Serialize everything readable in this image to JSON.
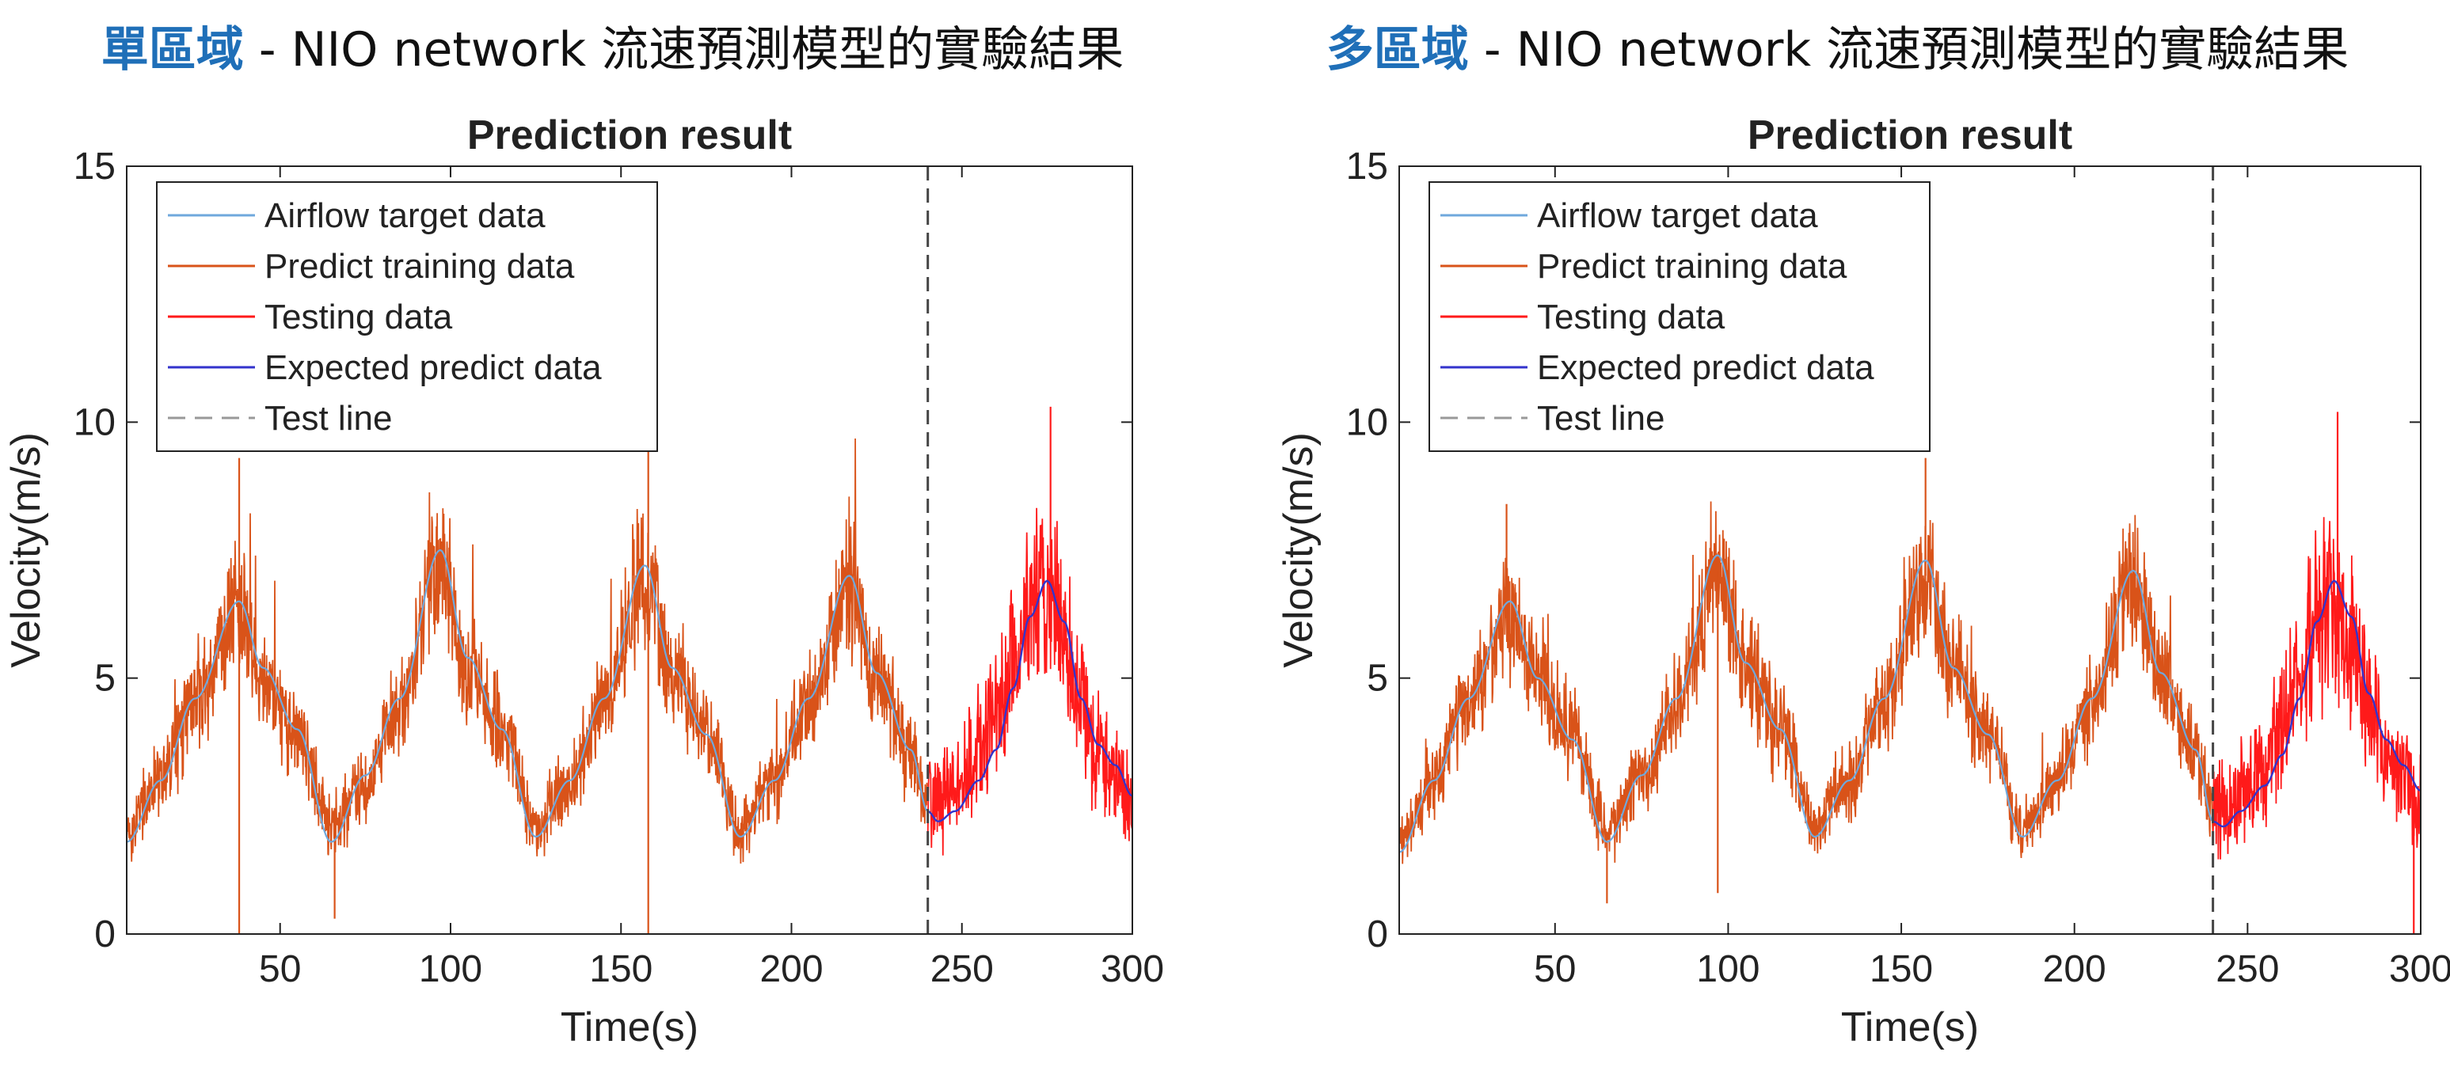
{
  "headings": [
    {
      "highlight": "單區域",
      "rest": " - NIO network 流速預測模型的實驗結果"
    },
    {
      "highlight": "多區域",
      "rest": " - NIO network 流速預測模型的實驗結果"
    }
  ],
  "colors": {
    "highlight": "#1f6fb8",
    "airflow_target": "#6fa8dc",
    "predict_training": "#d95319",
    "testing": "#ff1a1a",
    "expected_predict": "#3333cc",
    "test_line": "#999999"
  },
  "chart_data": [
    {
      "type": "line",
      "title": "Prediction result",
      "xlabel": "Time(s)",
      "ylabel": "Velocity(m/s)",
      "xlim": [
        5,
        300
      ],
      "ylim": [
        0,
        15
      ],
      "xticks": [
        50,
        100,
        150,
        200,
        250,
        300
      ],
      "yticks": [
        0,
        5,
        10,
        15
      ],
      "test_line_x": 240,
      "legend_position": "top-left",
      "legend": [
        "Airflow target data",
        "Predict training data",
        "Testing data",
        "Expected predict data",
        "Test line"
      ],
      "series": [
        {
          "name": "Airflow target data",
          "x": [
            5,
            15,
            25,
            38,
            45,
            55,
            65,
            75,
            85,
            97,
            105,
            115,
            125,
            135,
            145,
            157,
            165,
            175,
            185,
            195,
            205,
            217,
            225,
            235,
            240
          ],
          "values": [
            1.8,
            3.0,
            4.6,
            6.5,
            5.2,
            4.0,
            1.8,
            3.1,
            4.6,
            7.5,
            5.4,
            4.0,
            1.9,
            3.0,
            4.6,
            7.2,
            5.2,
            3.9,
            1.9,
            3.0,
            4.6,
            7.0,
            5.1,
            3.6,
            2.4
          ]
        },
        {
          "name": "Predict training data",
          "x": [
            5,
            15,
            25,
            38,
            45,
            55,
            65,
            75,
            85,
            97,
            105,
            115,
            125,
            135,
            145,
            157,
            165,
            175,
            185,
            195,
            205,
            217,
            225,
            235,
            240
          ],
          "values": [
            2.0,
            3.1,
            4.5,
            6.2,
            5.0,
            4.0,
            2.1,
            3.0,
            4.4,
            7.2,
            5.3,
            4.1,
            2.1,
            3.0,
            4.5,
            7.0,
            5.1,
            3.9,
            2.0,
            3.0,
            4.5,
            6.8,
            5.0,
            3.5,
            2.6
          ]
        },
        {
          "name": "Testing data",
          "x": [
            240,
            245,
            250,
            255,
            260,
            265,
            270,
            275,
            280,
            285,
            290,
            295,
            300
          ],
          "values": [
            2.8,
            2.7,
            3.0,
            3.6,
            4.2,
            5.3,
            6.4,
            6.6,
            5.8,
            4.5,
            3.6,
            3.1,
            2.6
          ]
        },
        {
          "name": "Expected predict data",
          "x": [
            240,
            243,
            248,
            255,
            260,
            265,
            270,
            275,
            280,
            285,
            290,
            295,
            300
          ],
          "values": [
            2.4,
            2.2,
            2.4,
            3.0,
            3.6,
            4.8,
            6.2,
            6.9,
            6.1,
            4.6,
            3.7,
            3.3,
            2.7
          ]
        }
      ],
      "spikes": [
        {
          "x": 38,
          "y": 0
        },
        {
          "x": 38,
          "y": 9.3
        },
        {
          "x": 158,
          "y": 0
        },
        {
          "x": 158,
          "y": 9.9
        },
        {
          "x": 276,
          "y": 10.3
        },
        {
          "x": 66,
          "y": 0.3
        }
      ]
    },
    {
      "type": "line",
      "title": "Prediction result",
      "xlabel": "Time(s)",
      "ylabel": "Velocity(m/s)",
      "xlim": [
        5,
        300
      ],
      "ylim": [
        0,
        15
      ],
      "xticks": [
        50,
        100,
        150,
        200,
        250,
        300
      ],
      "yticks": [
        0,
        5,
        10,
        15
      ],
      "test_line_x": 240,
      "legend_position": "top-left",
      "legend": [
        "Airflow target data",
        "Predict training data",
        "Testing data",
        "Expected predict data",
        "Test line"
      ],
      "series": [
        {
          "name": "Airflow target data",
          "x": [
            5,
            15,
            25,
            37,
            45,
            55,
            65,
            75,
            85,
            97,
            105,
            115,
            125,
            135,
            145,
            157,
            165,
            175,
            185,
            195,
            205,
            217,
            225,
            235,
            240
          ],
          "values": [
            1.6,
            3.0,
            4.6,
            6.5,
            5.0,
            3.8,
            1.8,
            3.1,
            4.6,
            7.4,
            5.3,
            4.0,
            1.9,
            3.0,
            4.6,
            7.3,
            5.2,
            3.9,
            1.9,
            3.0,
            4.6,
            7.1,
            5.1,
            3.6,
            2.2
          ]
        },
        {
          "name": "Predict training data",
          "x": [
            5,
            15,
            25,
            37,
            45,
            55,
            65,
            75,
            85,
            97,
            105,
            115,
            125,
            135,
            145,
            157,
            165,
            175,
            185,
            195,
            205,
            217,
            225,
            235,
            240
          ],
          "values": [
            1.8,
            3.1,
            4.5,
            6.2,
            5.0,
            3.9,
            2.0,
            3.0,
            4.4,
            7.1,
            5.2,
            4.0,
            2.1,
            3.0,
            4.5,
            7.0,
            5.1,
            3.9,
            2.0,
            3.0,
            4.5,
            6.8,
            5.0,
            3.5,
            2.4
          ]
        },
        {
          "name": "Testing data",
          "x": [
            240,
            245,
            250,
            255,
            260,
            265,
            270,
            275,
            280,
            285,
            290,
            295,
            300
          ],
          "values": [
            2.6,
            2.5,
            2.8,
            3.3,
            4.0,
            5.0,
            6.2,
            6.5,
            5.8,
            4.5,
            3.5,
            3.0,
            2.6
          ]
        },
        {
          "name": "Expected predict data",
          "x": [
            240,
            243,
            248,
            255,
            260,
            265,
            270,
            275,
            280,
            285,
            290,
            295,
            300
          ],
          "values": [
            2.2,
            2.1,
            2.4,
            2.9,
            3.5,
            4.6,
            6.1,
            6.9,
            6.2,
            4.7,
            3.8,
            3.3,
            2.8
          ]
        }
      ],
      "spikes": [
        {
          "x": 97,
          "y": 0.8
        },
        {
          "x": 157,
          "y": 9.3
        },
        {
          "x": 276,
          "y": 10.2
        },
        {
          "x": 298,
          "y": 0
        },
        {
          "x": 36,
          "y": 8.4
        },
        {
          "x": 65,
          "y": 0.6
        }
      ]
    }
  ]
}
